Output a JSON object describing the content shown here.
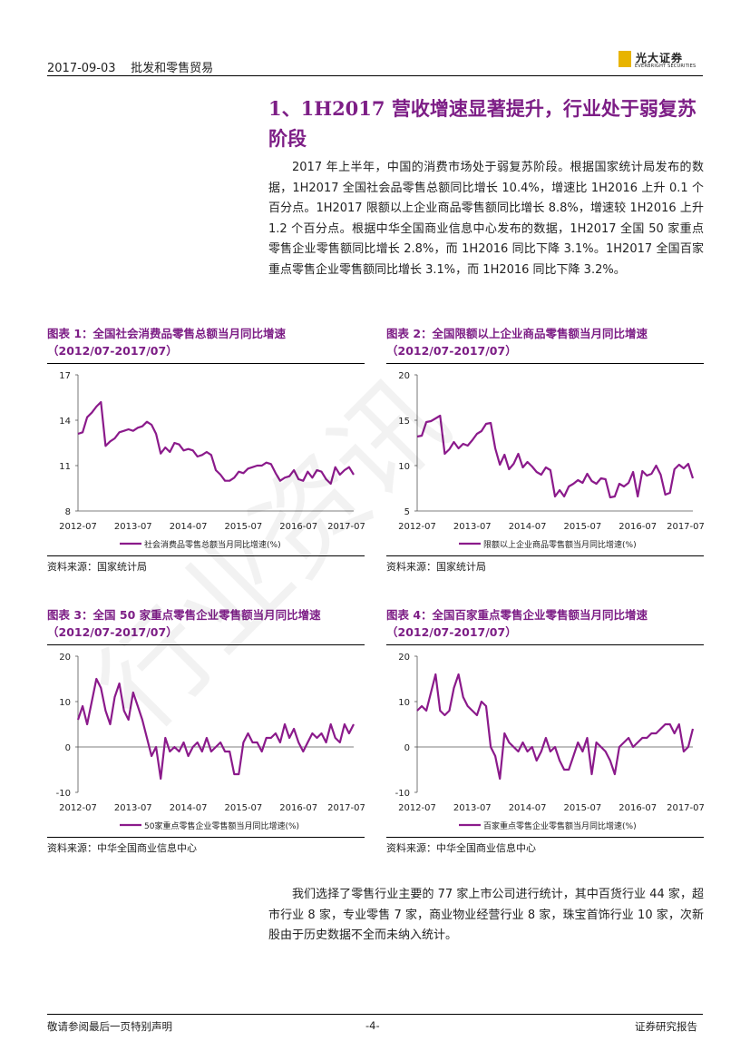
{
  "header": {
    "date": "2017-09-03",
    "section": "批发和零售贸易",
    "logo_cn": "光大证券",
    "logo_en": "EVERBRIGHT SECURITIES"
  },
  "heading": "1、1H2017 营收增速显著提升，行业处于弱复苏阶段",
  "paragraph1": "2017 年上半年，中国的消费市场处于弱复苏阶段。根据国家统计局发布的数据，1H2017 全国社会品零售总额同比增长 10.4%，增速比 1H2016 上升 0.1 个百分点。1H2017 限额以上企业商品零售额同比增长 8.8%，增速较 1H2016 上升 1.2 个百分点。根据中华全国商业信息中心发布的数据，1H2017 全国 50 家重点零售企业零售额同比增长 2.8%，而 1H2016 同比下降 3.1%。1H2017 全国百家重点零售企业零售额同比增长 3.1%，而 1H2016 同比下降 3.2%。",
  "paragraph2": "我们选择了零售行业主要的 77 家上市公司进行统计，其中百货行业 44 家，超市行业 8 家，专业零售 7 家，商业物业经营行业 8 家，珠宝首饰行业 10 家，次新股由于历史数据不全而未纳入统计。",
  "watermark": "行业资讯",
  "footer": {
    "left": "敬请参阅最后一页特别声明",
    "center": "-4-",
    "right": "证券研究报告"
  },
  "colors": {
    "accent": "#7d1e86",
    "logo": "#e8b400"
  },
  "chart_data": [
    {
      "type": "line",
      "title": "图表 1：全国社会消费品零售总额当月同比增速",
      "subtitle": "（2012/07-2017/07）",
      "source": "资料来源：国家统计局",
      "legend": "社会消费品零售总额当月同比增速(%)",
      "x_ticks": [
        "2012-07",
        "2013-07",
        "2014-07",
        "2015-07",
        "2016-07",
        "2017-07"
      ],
      "y_ticks": [
        "8",
        "11",
        "14",
        "17"
      ],
      "ylim": [
        8,
        17
      ],
      "x": [
        0,
        1,
        2,
        3,
        4,
        5,
        6,
        7,
        8,
        9,
        10,
        11,
        12,
        13,
        14,
        15,
        16,
        17,
        18,
        19,
        20,
        21,
        22,
        23,
        24,
        25,
        26,
        27,
        28,
        29,
        30,
        31,
        32,
        33,
        34,
        35,
        36,
        37,
        38,
        39,
        40,
        41,
        42,
        43,
        44,
        45,
        46,
        47,
        48,
        49,
        50,
        51,
        52,
        53,
        54,
        55,
        56,
        57,
        58,
        59,
        60
      ],
      "values": [
        13.1,
        13.2,
        14.2,
        14.5,
        14.9,
        15.2,
        12.3,
        12.6,
        12.8,
        13.2,
        13.3,
        13.4,
        13.3,
        13.5,
        13.6,
        13.9,
        13.7,
        13.1,
        11.8,
        12.2,
        11.9,
        12.5,
        12.4,
        12.0,
        12.1,
        12.0,
        11.6,
        11.7,
        11.9,
        11.7,
        10.7,
        10.4,
        10.0,
        10.0,
        10.2,
        10.6,
        10.5,
        10.8,
        10.9,
        11.0,
        11.0,
        11.2,
        11.1,
        10.5,
        10.0,
        10.2,
        10.3,
        10.7,
        10.1,
        10.0,
        10.6,
        10.2,
        10.7,
        10.6,
        10.1,
        9.8,
        10.9,
        10.4,
        10.7,
        10.9,
        10.4
      ],
      "series_color": "#8b1a8b"
    },
    {
      "type": "line",
      "title": "图表 2：全国限额以上企业商品零售额当月同比增速",
      "subtitle": "（2012/07-2017/07）",
      "source": "资料来源：国家统计局",
      "legend": "限额以上企业商品零售额当月同比增速(%)",
      "x_ticks": [
        "2012-07",
        "2013-07",
        "2014-07",
        "2015-07",
        "2016-07",
        "2017-07"
      ],
      "y_ticks": [
        "5",
        "10",
        "15",
        "20"
      ],
      "ylim": [
        5,
        20
      ],
      "x": [
        0,
        1,
        2,
        3,
        4,
        5,
        6,
        7,
        8,
        9,
        10,
        11,
        12,
        13,
        14,
        15,
        16,
        17,
        18,
        19,
        20,
        21,
        22,
        23,
        24,
        25,
        26,
        27,
        28,
        29,
        30,
        31,
        32,
        33,
        34,
        35,
        36,
        37,
        38,
        39,
        40,
        41,
        42,
        43,
        44,
        45,
        46,
        47,
        48,
        49,
        50,
        51,
        52,
        53,
        54,
        55,
        56,
        57,
        58,
        59,
        60
      ],
      "values": [
        13.2,
        13.3,
        14.8,
        14.9,
        15.2,
        15.5,
        11.3,
        11.8,
        12.6,
        11.9,
        12.4,
        12.2,
        12.8,
        13.5,
        13.8,
        14.6,
        14.7,
        11.9,
        10.1,
        11.2,
        9.6,
        10.2,
        11.3,
        9.8,
        10.4,
        9.9,
        9.3,
        9.0,
        9.8,
        9.5,
        6.6,
        7.3,
        6.6,
        7.7,
        8.0,
        8.4,
        8.1,
        9.1,
        8.3,
        8.0,
        8.6,
        8.5,
        6.5,
        6.6,
        8.0,
        7.7,
        8.1,
        9.3,
        6.6,
        9.4,
        8.9,
        9.1,
        10.0,
        9.0,
        6.8,
        7.0,
        9.6,
        10.1,
        9.7,
        10.2,
        8.6
      ],
      "series_color": "#8b1a8b"
    },
    {
      "type": "line",
      "title": "图表 3：全国 50 家重点零售企业零售额当月同比增速",
      "subtitle": "（2012/07-2017/07）",
      "source": "资料来源：中华全国商业信息中心",
      "legend": "50家重点零售企业零售额当月同比增速(%)",
      "x_ticks": [
        "2012-07",
        "2013-07",
        "2014-07",
        "2015-07",
        "2016-07",
        "2017-07"
      ],
      "y_ticks": [
        "-10",
        "0",
        "10",
        "20"
      ],
      "ylim": [
        -10,
        20
      ],
      "x": [
        0,
        1,
        2,
        3,
        4,
        5,
        6,
        7,
        8,
        9,
        10,
        11,
        12,
        13,
        14,
        15,
        16,
        17,
        18,
        19,
        20,
        21,
        22,
        23,
        24,
        25,
        26,
        27,
        28,
        29,
        30,
        31,
        32,
        33,
        34,
        35,
        36,
        37,
        38,
        39,
        40,
        41,
        42,
        43,
        44,
        45,
        46,
        47,
        48,
        49,
        50,
        51,
        52,
        53,
        54,
        55,
        56,
        57,
        58,
        59,
        60
      ],
      "values": [
        6,
        9,
        5,
        10,
        15,
        13,
        8,
        5,
        11,
        14,
        8,
        6,
        12,
        9,
        6,
        2,
        -2,
        0,
        -7,
        2,
        -1,
        0,
        -1,
        1,
        -2,
        0,
        1,
        -1,
        2,
        -1,
        0,
        1,
        -1,
        -1,
        -6,
        -6,
        1,
        3,
        1,
        1,
        -1,
        2,
        2,
        3,
        1,
        5,
        2,
        4,
        1,
        -1,
        1,
        3,
        2,
        3,
        1,
        5,
        2,
        1,
        5,
        3,
        5
      ],
      "series_color": "#8b1a8b"
    },
    {
      "type": "line",
      "title": "图表 4：全国百家重点零售企业零售额当月同比增速",
      "subtitle": "（2012/07-2017/07）",
      "source": "资料来源：中华全国商业信息中心",
      "legend": "百家重点零售企业零售额当月同比增速(%)",
      "x_ticks": [
        "2012-07",
        "2013-07",
        "2014-07",
        "2015-07",
        "2016-07",
        "2017-07"
      ],
      "y_ticks": [
        "-10",
        "0",
        "10",
        "20"
      ],
      "ylim": [
        -10,
        20
      ],
      "x": [
        0,
        1,
        2,
        3,
        4,
        5,
        6,
        7,
        8,
        9,
        10,
        11,
        12,
        13,
        14,
        15,
        16,
        17,
        18,
        19,
        20,
        21,
        22,
        23,
        24,
        25,
        26,
        27,
        28,
        29,
        30,
        31,
        32,
        33,
        34,
        35,
        36,
        37,
        38,
        39,
        40,
        41,
        42,
        43,
        44,
        45,
        46,
        47,
        48,
        49,
        50,
        51,
        52,
        53,
        54,
        55,
        56,
        57,
        58,
        59,
        60
      ],
      "values": [
        8,
        9,
        8,
        12,
        16,
        8,
        7,
        8,
        13,
        16,
        11,
        9,
        8,
        7,
        10,
        9,
        0,
        -2,
        -7,
        3,
        1,
        0,
        -1,
        1,
        -1,
        0,
        -3,
        -1,
        2,
        -1,
        0,
        -3,
        -5,
        -5,
        -2,
        1,
        -1,
        2,
        -6,
        1,
        0,
        -1,
        -3,
        -6,
        0,
        1,
        2,
        0,
        1,
        2,
        2,
        3,
        3,
        4,
        5,
        5,
        3,
        5,
        -1,
        0,
        4
      ],
      "series_color": "#8b1a8b"
    }
  ]
}
